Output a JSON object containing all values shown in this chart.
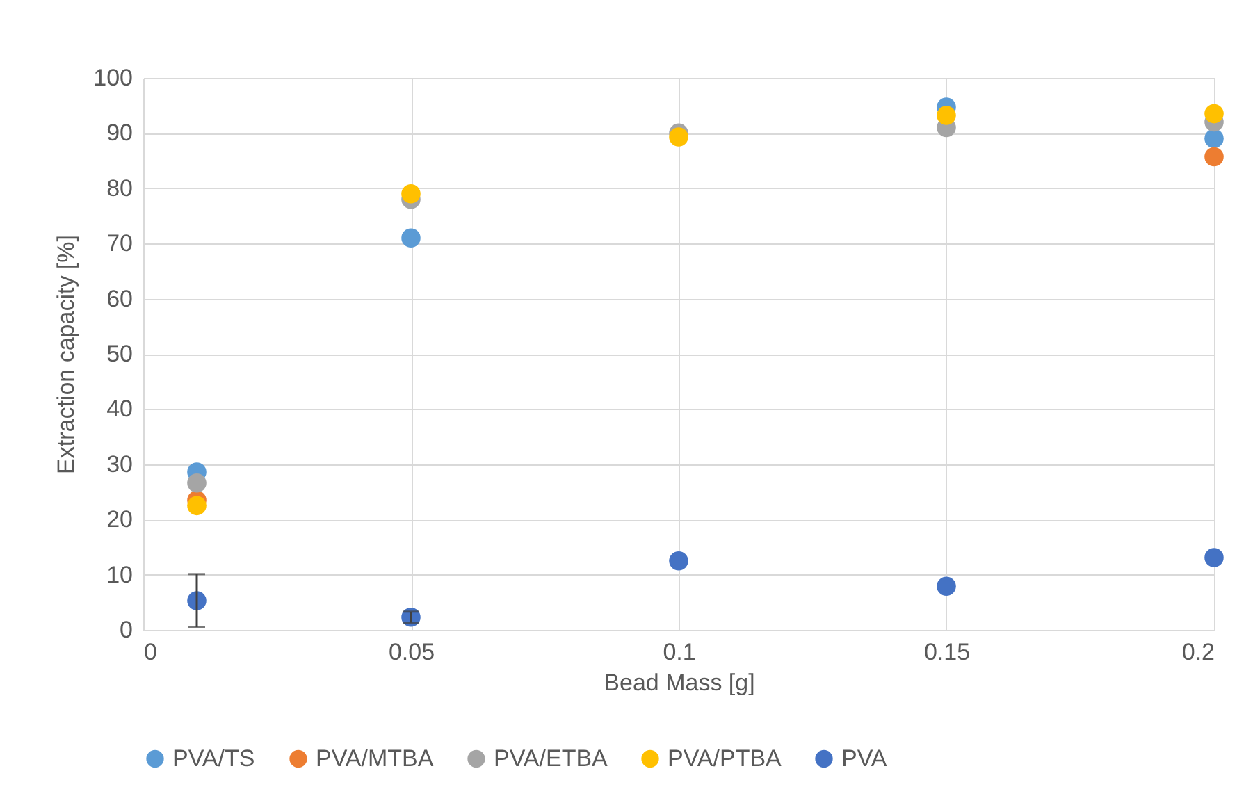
{
  "chart_data": {
    "type": "scatter",
    "xlabel": "Bead Mass [g]",
    "ylabel": "Extraction capacity [%]",
    "x": [
      0.01,
      0.05,
      0.1,
      0.15,
      0.2
    ],
    "series": [
      {
        "name": "PVA/TS",
        "color": "#5b9bd5",
        "values": [
          28.6,
          71,
          null,
          94.7,
          89
        ]
      },
      {
        "name": "PVA/MTBA",
        "color": "#ed7d31",
        "values": [
          23.5,
          null,
          null,
          null,
          85.7
        ]
      },
      {
        "name": "PVA/ETBA",
        "color": "#a5a5a5",
        "values": [
          26.6,
          78,
          90,
          91,
          92
        ]
      },
      {
        "name": "PVA/PTBA",
        "color": "#ffc000",
        "values": [
          22.5,
          79,
          89.3,
          93.2,
          93.5
        ]
      },
      {
        "name": "PVA",
        "color": "#4472c4",
        "values": [
          5.3,
          2.3,
          12.5,
          7.9,
          13.1
        ],
        "errors": [
          4.8,
          1,
          null,
          null,
          null
        ]
      }
    ],
    "xlim": [
      0,
      0.2
    ],
    "xticks": [
      0,
      0.05,
      0.1,
      0.15,
      0.2
    ],
    "ylim": [
      0,
      100
    ],
    "yticks": [
      0,
      10,
      20,
      30,
      40,
      50,
      60,
      70,
      80,
      90,
      100
    ],
    "grid": true,
    "legend": "bottom",
    "marker": "circle"
  }
}
